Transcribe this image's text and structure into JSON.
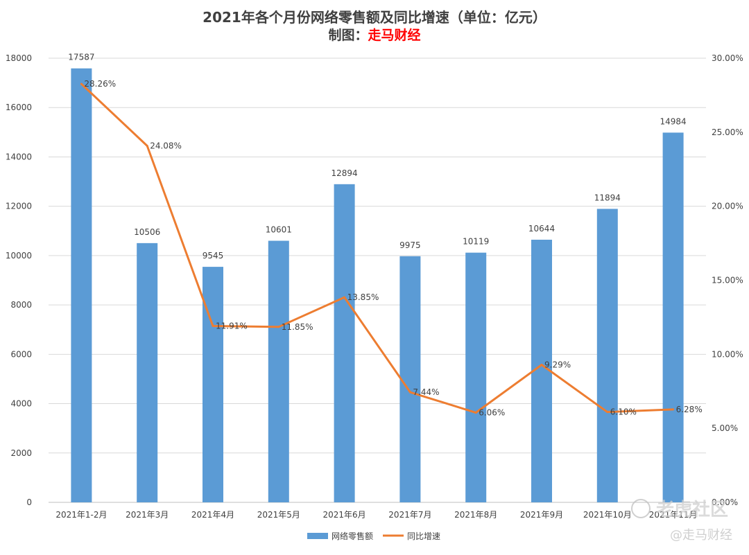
{
  "title_line1": "2021年各个月份网络零售额及同比增速（单位：亿元）",
  "title_line2_prefix": "制图：",
  "title_line2_brand": "走马财经",
  "watermark_main": "老虎社区",
  "watermark_sub": "@走马财经",
  "colors": {
    "bar": "#5b9bd5",
    "line": "#ed7d31",
    "grid": "#d9d9d9",
    "text": "#404040",
    "brand": "#ff0000"
  },
  "chart_data": {
    "type": "bar",
    "categories": [
      "2021年1-2月",
      "2021年3月",
      "2021年4月",
      "2021年5月",
      "2021年6月",
      "2021年7月",
      "2021年8月",
      "2021年9月",
      "2021年10月",
      "2021年11月"
    ],
    "category_labels": [
      "2021年1-2月",
      "2021年3月",
      "2021年4月",
      "2021年5月",
      "2021年6月",
      "2021年7月",
      "2021年8月",
      "2021年9月",
      "2021年10月",
      "2021年11月"
    ],
    "series": [
      {
        "name": "网络零售额",
        "type": "bar",
        "axis": "left",
        "values": [
          17587,
          10506,
          9545,
          10601,
          12894,
          9975,
          10119,
          10644,
          11894,
          14984
        ]
      },
      {
        "name": "同比增速",
        "type": "line",
        "axis": "right",
        "values": [
          28.26,
          24.08,
          11.91,
          11.85,
          13.85,
          7.44,
          6.06,
          9.29,
          6.1,
          6.28
        ]
      }
    ],
    "bar_labels": [
      "17587",
      "10506",
      "9545",
      "10601",
      "12894",
      "9975",
      "10119",
      "10644",
      "11894",
      "14984"
    ],
    "line_labels": [
      "28.26%",
      "24.08%",
      "11.91%",
      "11.85%",
      "13.85%",
      "7.44%",
      "6.06%",
      "9.29%",
      "6.10%",
      "6.28%"
    ],
    "left_axis": {
      "min": 0,
      "max": 18000,
      "ticks": [
        "0",
        "2000",
        "4000",
        "6000",
        "8000",
        "10000",
        "12000",
        "14000",
        "16000",
        "18000"
      ]
    },
    "right_axis": {
      "min": 0,
      "max": 30,
      "ticks": [
        "0.00%",
        "5.00%",
        "10.00%",
        "15.00%",
        "20.00%",
        "25.00%",
        "30.00%"
      ]
    },
    "grid": true,
    "legend_position": "bottom",
    "legend": [
      "网络零售额",
      "同比增速"
    ]
  }
}
